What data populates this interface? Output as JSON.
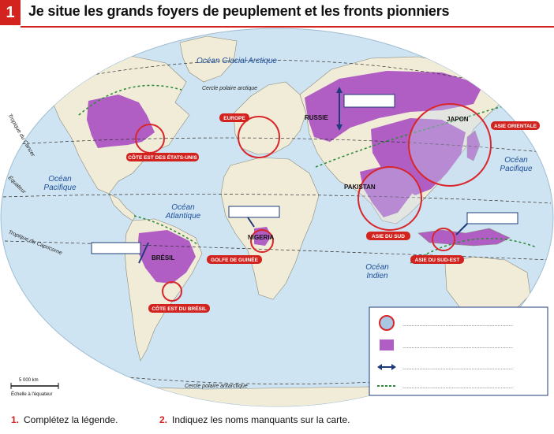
{
  "title": {
    "number": "1",
    "text": "Je situe les grands foyers de peuplement et les fronts pionniers"
  },
  "map": {
    "oceans": [
      {
        "id": "glacial",
        "label": "Océan Glacial Arctique"
      },
      {
        "id": "atlantique",
        "label": "Océan\nAtlantique"
      },
      {
        "id": "pacifique-w",
        "label": "Océan\nPacifique"
      },
      {
        "id": "pacifique-e",
        "label": "Océan\nPacifique"
      },
      {
        "id": "indien",
        "label": "Océan\nIndien"
      }
    ],
    "lines": {
      "cercle_arctique": "Cercle polaire arctique",
      "tropique_cancer": "Tropique du Cancer",
      "equateur": "Équateur",
      "tropique_capricorne": "Tropique du Capricorne",
      "cercle_antarctique": "Cercle polaire antarctique"
    },
    "countries": [
      "RUSSIE",
      "JAPON",
      "PAKISTAN",
      "NIGERIA",
      "BRÉSIL"
    ],
    "region_tags": [
      "CÔTE EST DES ÉTATS-UNIS",
      "EUROPE",
      "ASIE ORIENTALE",
      "ASIE DU SUD",
      "ASIE DU SUD-EST",
      "GOLFE DE GUINÉE",
      "CÔTE EST DU BRÉSIL"
    ],
    "scale": {
      "distance": "5 000 km",
      "note": "Échelle à l'équateur"
    },
    "colors": {
      "ocean": "#cfe4f2",
      "land": "#f1ecd8",
      "population": "#b05ec4",
      "circle": "#d9262a",
      "tag": "#d2231e",
      "arrow": "#1f3b7a",
      "front": "#2e8b3a"
    }
  },
  "legend": {
    "items": [
      {
        "symbol": "circle-icon",
        "text": "........................................................................"
      },
      {
        "symbol": "purple-square-icon",
        "text": "........................................................................"
      },
      {
        "symbol": "double-arrow-icon",
        "text": "........................................................................"
      },
      {
        "symbol": "dashed-line-icon",
        "text": "........................................................................"
      }
    ]
  },
  "instructions": [
    {
      "number": "1.",
      "text": "Complétez la légende."
    },
    {
      "number": "2.",
      "text": "Indiquez les noms manquants sur la carte."
    }
  ]
}
